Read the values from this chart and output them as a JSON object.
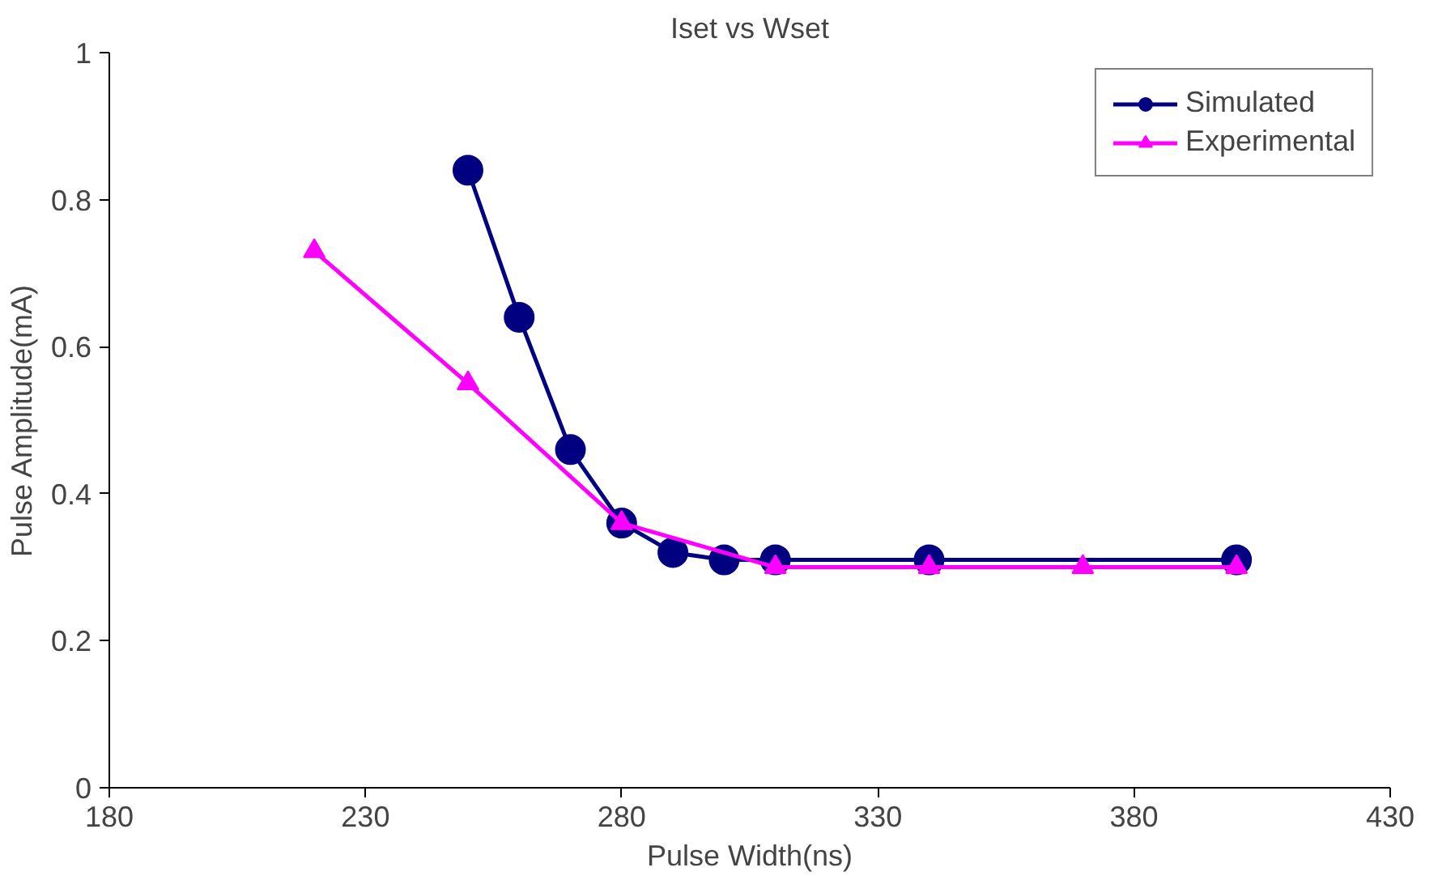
{
  "chart_data": {
    "type": "line",
    "title": "Iset vs Wset",
    "xlabel": "Pulse Width(ns)",
    "ylabel": "Pulse Amplitude(mA)",
    "xlim": [
      180,
      430
    ],
    "xticks": [
      180,
      230,
      280,
      330,
      380,
      430
    ],
    "ylim": [
      0,
      1
    ],
    "yticks": [
      0,
      0.2,
      0.4,
      0.6,
      0.8,
      1
    ],
    "grid": false,
    "legend": "top right",
    "series": [
      {
        "name": "Simulated",
        "color": "#000080",
        "marker": "circle",
        "x": [
          250,
          260,
          270,
          280,
          290,
          300,
          310,
          340,
          400
        ],
        "values": [
          0.84,
          0.64,
          0.46,
          0.36,
          0.32,
          0.31,
          0.31,
          0.31,
          0.31
        ]
      },
      {
        "name": "Experimental",
        "color": "#ff00ff",
        "marker": "triangle",
        "x": [
          220,
          250,
          280,
          310,
          340,
          370,
          400
        ],
        "values": [
          0.73,
          0.55,
          0.36,
          0.3,
          0.3,
          0.3,
          0.3
        ]
      }
    ]
  }
}
